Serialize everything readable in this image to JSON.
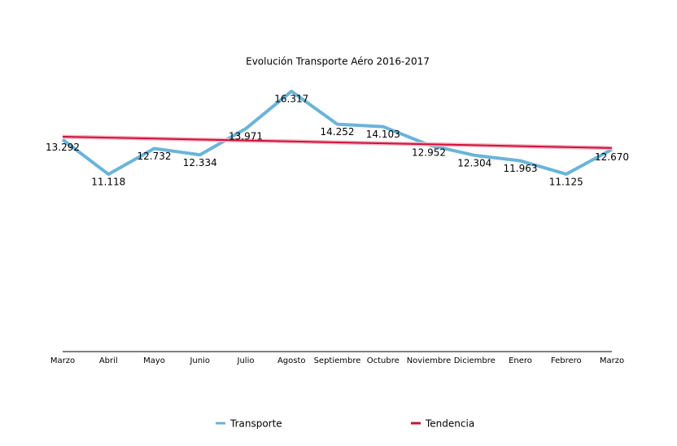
{
  "chart_data": {
    "type": "line",
    "title": "Evolución Transporte Aéro 2016-2017",
    "categories": [
      "Marzo",
      "Abril",
      "Mayo",
      "Junio",
      "Julio",
      "Agosto",
      "Septiembre",
      "Octubre",
      "Noviembre",
      "Diciembre",
      "Enero",
      "Febrero",
      "Marzo"
    ],
    "series": [
      {
        "name": "Transporte",
        "color": "#6ab4d8",
        "values": [
          13292,
          11118,
          12732,
          12334,
          13971,
          16317,
          14252,
          14103,
          12952,
          12304,
          11963,
          11125,
          12670
        ],
        "value_labels": [
          "13.292",
          "11.118",
          "12.732",
          "12.334",
          "13.971",
          "16.317",
          "14.252",
          "14.103",
          "12.952",
          "12.304",
          "11.963",
          "11.125",
          "12.670"
        ]
      },
      {
        "name": "Tendencia",
        "color": "#d0103a",
        "values": [
          13470,
          13411,
          13352,
          13293,
          13233,
          13174,
          13115,
          13056,
          12997,
          12938,
          12878,
          12819,
          12760
        ]
      }
    ],
    "ylim": [
      0,
      20000
    ]
  }
}
